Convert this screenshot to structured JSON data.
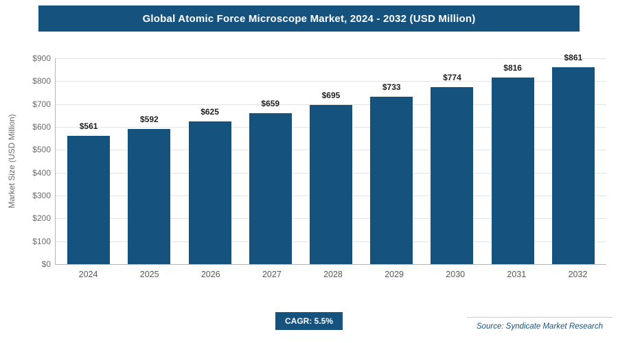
{
  "header": {
    "title": "Global Atomic Force Microscope Market, 2024 - 2032 (USD Million)"
  },
  "chart_data": {
    "type": "bar",
    "title": "Global Atomic Force Microscope Market, 2024 - 2032 (USD Million)",
    "categories": [
      "2024",
      "2025",
      "2026",
      "2027",
      "2028",
      "2029",
      "2030",
      "2031",
      "2032"
    ],
    "values": [
      561,
      592,
      625,
      659,
      695,
      733,
      774,
      816,
      861
    ],
    "value_labels": [
      "$561",
      "$592",
      "$625",
      "$659",
      "$695",
      "$733",
      "$774",
      "$816",
      "$861"
    ],
    "xlabel": "",
    "ylabel": "Market Size (USD Million)",
    "ylim": [
      0,
      900
    ],
    "ytick_step": 100,
    "ytick_labels": [
      "$0",
      "$100",
      "$200",
      "$300",
      "$400",
      "$500",
      "$600",
      "$700",
      "$800",
      "$900"
    ],
    "grid": true,
    "legend": "none",
    "bar_color": "#15537E"
  },
  "footer": {
    "cagr_label": "CAGR: 5.5%",
    "source": "Source: Syndicate Market Research"
  },
  "colors": {
    "accent": "#15537E",
    "grid": "#e3e3e3",
    "axis": "#b3b3b3",
    "tick_text": "#6b6b6b",
    "value_text": "#1f1f1f"
  }
}
